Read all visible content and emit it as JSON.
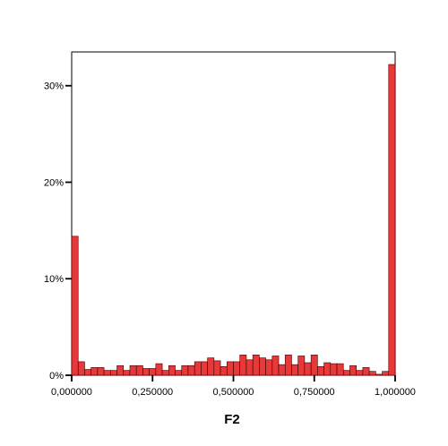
{
  "chart_data": {
    "type": "bar",
    "title": "",
    "xlabel": "F2",
    "ylabel": "",
    "xlim": [
      0,
      1
    ],
    "ylim": [
      0,
      33.5
    ],
    "grid": false,
    "x_ticks": [
      "0,000000",
      "0,250000",
      "0,500000",
      "0,750000",
      "1,000000"
    ],
    "y_ticks": [
      "0%",
      "10%",
      "20%",
      "30%"
    ],
    "y_tick_values": [
      0,
      10,
      20,
      30
    ],
    "bin_width": 0.02,
    "bar_color": "#e8393a",
    "bins_start": [
      0.0,
      0.02,
      0.04,
      0.06,
      0.08,
      0.1,
      0.12,
      0.14,
      0.16,
      0.18,
      0.2,
      0.22,
      0.24,
      0.26,
      0.28,
      0.3,
      0.32,
      0.34,
      0.36,
      0.38,
      0.4,
      0.42,
      0.44,
      0.46,
      0.48,
      0.5,
      0.52,
      0.54,
      0.56,
      0.58,
      0.6,
      0.62,
      0.64,
      0.66,
      0.68,
      0.7,
      0.72,
      0.74,
      0.76,
      0.78,
      0.8,
      0.82,
      0.84,
      0.86,
      0.88,
      0.9,
      0.92,
      0.94,
      0.96,
      0.98
    ],
    "values": [
      14.4,
      1.4,
      0.6,
      0.8,
      0.8,
      0.5,
      0.5,
      1.0,
      0.5,
      1.0,
      1.0,
      0.7,
      0.7,
      1.2,
      0.5,
      1.0,
      0.5,
      1.0,
      1.0,
      1.4,
      1.4,
      1.8,
      1.5,
      0.9,
      1.4,
      1.4,
      2.1,
      1.6,
      2.1,
      1.8,
      1.6,
      2.0,
      1.1,
      2.1,
      1.1,
      2.0,
      1.3,
      2.1,
      0.9,
      1.3,
      1.2,
      1.2,
      0.5,
      1.0,
      0.5,
      0.8,
      0.4,
      0.1,
      0.4,
      32.2
    ]
  }
}
